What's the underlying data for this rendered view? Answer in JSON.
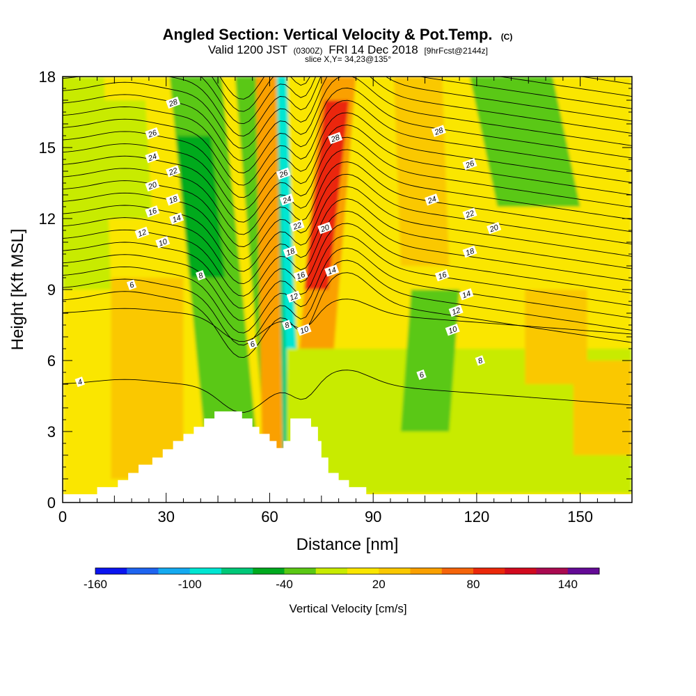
{
  "title": {
    "main": "Angled Section: Vertical Velocity & Pot.Temp.",
    "main_suffix": "(C)",
    "valid_prefix": "Valid 1200 JST",
    "valid_utc": "(0300Z)",
    "valid_date": "FRI 14 Dec 2018",
    "forecast": "[9hrFcst@2144z]",
    "slice": "slice X,Y= 34,23@135°"
  },
  "chart_data": {
    "type": "heatmap",
    "xlabel": "Distance [nm]",
    "ylabel": "Height [Kft MSL]",
    "xlim": [
      0,
      165
    ],
    "ylim": [
      0,
      18
    ],
    "x_ticks": [
      "0",
      "30",
      "60",
      "90",
      "120",
      "150"
    ],
    "y_ticks": [
      "0",
      "3",
      "6",
      "9",
      "12",
      "15",
      "18"
    ],
    "colorbar": {
      "label": "Vertical Velocity [cm/s]",
      "tick_labels": [
        "-160",
        "-100",
        "-40",
        "20",
        "80",
        "140"
      ],
      "range": [
        -160,
        160
      ],
      "colors": [
        "#0a14f0",
        "#1e64f0",
        "#14aaf0",
        "#00e6d2",
        "#00c878",
        "#00aa1e",
        "#5ac814",
        "#c8eb00",
        "#fae600",
        "#fac800",
        "#faa000",
        "#f5640a",
        "#eb280a",
        "#d20a1e",
        "#aa0a50",
        "#640a96"
      ]
    },
    "background_value": 10,
    "velocity_features": [
      {
        "x": [
          43,
          58
        ],
        "y": [
          0,
          18
        ],
        "x_shift": 12,
        "value": -40
      },
      {
        "x": [
          37,
          47
        ],
        "y": [
          9.5,
          15.5
        ],
        "x_shift": 4,
        "value": -60
      },
      {
        "x": [
          60,
          67
        ],
        "y": [
          0,
          18
        ],
        "x_shift": 10,
        "value": -30
      },
      {
        "x": [
          63,
          70
        ],
        "y": [
          0,
          18
        ],
        "x_shift": 6,
        "value": -70
      },
      {
        "x": [
          65,
          68
        ],
        "y": [
          5,
          18
        ],
        "x_shift": 3,
        "value": -100
      },
      {
        "x": [
          67,
          77
        ],
        "y": [
          3.5,
          18
        ],
        "x_shift": -8,
        "value": 45
      },
      {
        "x": [
          70,
          77
        ],
        "y": [
          9,
          17
        ],
        "x_shift": -6,
        "value": 80
      },
      {
        "x": [
          58,
          64
        ],
        "y": [
          0,
          18
        ],
        "x_shift": 2,
        "value": 40
      },
      {
        "x": [
          0,
          14
        ],
        "y": [
          9,
          18
        ],
        "x_shift": 2,
        "value": -20
      },
      {
        "x": [
          10,
          26
        ],
        "y": [
          12,
          17
        ],
        "x_shift": 2,
        "value": -10
      },
      {
        "x": [
          14,
          35
        ],
        "y": [
          1,
          9.5
        ],
        "x_shift": 0,
        "value": 35
      },
      {
        "x": [
          65,
          165
        ],
        "y": [
          0.4,
          6.5
        ],
        "x_shift": 0,
        "value": -5
      },
      {
        "x": [
          98,
          112
        ],
        "y": [
          3,
          9
        ],
        "x_shift": -3,
        "value": -30
      },
      {
        "x": [
          98,
          112
        ],
        "y": [
          10,
          18
        ],
        "x_shift": 2,
        "value": 35
      },
      {
        "x": [
          126,
          150
        ],
        "y": [
          12.5,
          18
        ],
        "x_shift": 8,
        "value": -30
      },
      {
        "x": [
          134,
          152
        ],
        "y": [
          5,
          9
        ],
        "x_shift": 0,
        "value": 30
      },
      {
        "x": [
          148,
          165
        ],
        "y": [
          2,
          6
        ],
        "x_shift": 0,
        "value": 20
      }
    ],
    "theta_contours": [
      4,
      6,
      8,
      10,
      12,
      14,
      16,
      18,
      20,
      22,
      24,
      26,
      28
    ],
    "contour_labels": [
      {
        "text": "4",
        "x": 5,
        "y": 5.1
      },
      {
        "text": "6",
        "x": 20,
        "y": 9.2
      },
      {
        "text": "6",
        "x": 55,
        "y": 6.7
      },
      {
        "text": "6",
        "x": 104,
        "y": 5.4
      },
      {
        "text": "8",
        "x": 40,
        "y": 9.6
      },
      {
        "text": "8",
        "x": 65,
        "y": 7.5
      },
      {
        "text": "8",
        "x": 121,
        "y": 6
      },
      {
        "text": "10",
        "x": 29,
        "y": 11
      },
      {
        "text": "10",
        "x": 70,
        "y": 7.3
      },
      {
        "text": "10",
        "x": 113,
        "y": 7.3
      },
      {
        "text": "12",
        "x": 23,
        "y": 11.4
      },
      {
        "text": "12",
        "x": 67,
        "y": 8.7
      },
      {
        "text": "12",
        "x": 114,
        "y": 8.1
      },
      {
        "text": "14",
        "x": 33,
        "y": 12
      },
      {
        "text": "14",
        "x": 78,
        "y": 9.8
      },
      {
        "text": "14",
        "x": 117,
        "y": 8.8
      },
      {
        "text": "16",
        "x": 26,
        "y": 12.3
      },
      {
        "text": "16",
        "x": 69,
        "y": 9.6
      },
      {
        "text": "16",
        "x": 110,
        "y": 9.6
      },
      {
        "text": "18",
        "x": 32,
        "y": 12.8
      },
      {
        "text": "18",
        "x": 66,
        "y": 10.6
      },
      {
        "text": "18",
        "x": 118,
        "y": 10.6
      },
      {
        "text": "20",
        "x": 26,
        "y": 13.4
      },
      {
        "text": "20",
        "x": 76,
        "y": 11.6
      },
      {
        "text": "20",
        "x": 125,
        "y": 11.6
      },
      {
        "text": "22",
        "x": 32,
        "y": 14
      },
      {
        "text": "22",
        "x": 68,
        "y": 11.7
      },
      {
        "text": "22",
        "x": 118,
        "y": 12.2
      },
      {
        "text": "24",
        "x": 26,
        "y": 14.6
      },
      {
        "text": "24",
        "x": 65,
        "y": 12.8
      },
      {
        "text": "24",
        "x": 107,
        "y": 12.8
      },
      {
        "text": "26",
        "x": 26,
        "y": 15.6
      },
      {
        "text": "26",
        "x": 64,
        "y": 13.9
      },
      {
        "text": "26",
        "x": 118,
        "y": 14.3
      },
      {
        "text": "28",
        "x": 32,
        "y": 16.9
      },
      {
        "text": "28",
        "x": 79,
        "y": 15.4
      },
      {
        "text": "28",
        "x": 109,
        "y": 15.7
      }
    ],
    "terrain": [
      {
        "x": 0,
        "h": 0.35
      },
      {
        "x": 10,
        "h": 0.65
      },
      {
        "x": 16,
        "h": 0.95
      },
      {
        "x": 19,
        "h": 1.25
      },
      {
        "x": 22,
        "h": 1.6
      },
      {
        "x": 26,
        "h": 1.9
      },
      {
        "x": 29,
        "h": 2.25
      },
      {
        "x": 32,
        "h": 2.6
      },
      {
        "x": 35,
        "h": 2.9
      },
      {
        "x": 38,
        "h": 3.2
      },
      {
        "x": 41,
        "h": 3.55
      },
      {
        "x": 44,
        "h": 3.85
      },
      {
        "x": 47,
        "h": 3.85
      },
      {
        "x": 50,
        "h": 3.85
      },
      {
        "x": 52,
        "h": 3.55
      },
      {
        "x": 55,
        "h": 3.2
      },
      {
        "x": 57,
        "h": 2.9
      },
      {
        "x": 60,
        "h": 2.6
      },
      {
        "x": 62,
        "h": 2.3
      },
      {
        "x": 64,
        "h": 2.6
      },
      {
        "x": 66,
        "h": 3.55
      },
      {
        "x": 69,
        "h": 3.55
      },
      {
        "x": 71,
        "h": 3.55
      },
      {
        "x": 72,
        "h": 3.2
      },
      {
        "x": 74,
        "h": 2.6
      },
      {
        "x": 75,
        "h": 1.9
      },
      {
        "x": 77,
        "h": 1.25
      },
      {
        "x": 80,
        "h": 0.95
      },
      {
        "x": 83,
        "h": 0.65
      },
      {
        "x": 88,
        "h": 0.35
      },
      {
        "x": 165,
        "h": 0.35
      }
    ]
  },
  "colors": {
    "background": "#ffffff",
    "contour_line": "#000000",
    "frame": "#000000",
    "terrain": "#ffffff"
  }
}
